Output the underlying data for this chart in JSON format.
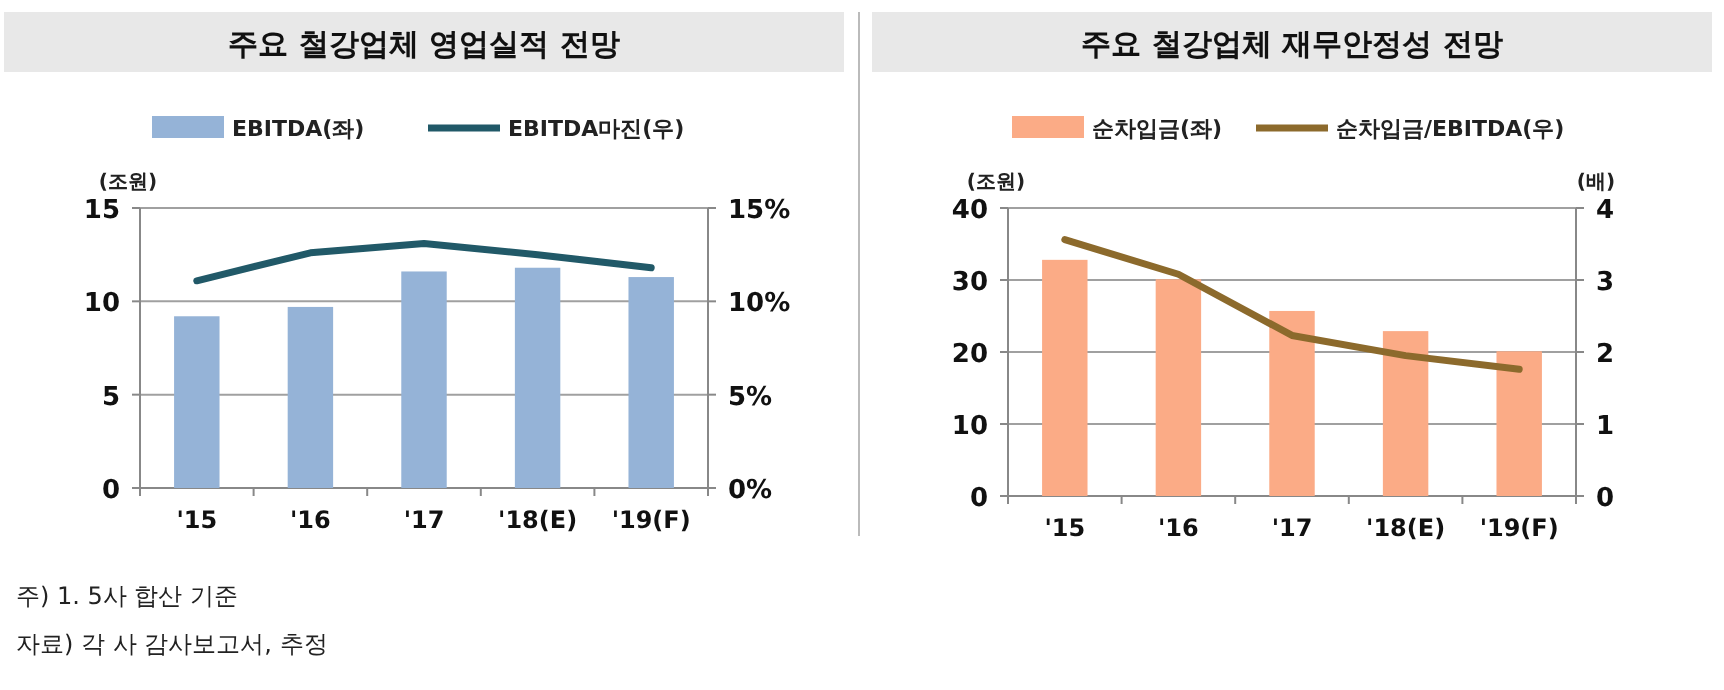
{
  "chart_data": [
    {
      "type": "bar",
      "title": "주요 철강업체 영업실적 전망",
      "ylabel": "(조원)",
      "categories": [
        "'15",
        "'16",
        "'17",
        "'18(E)",
        "'19(F)"
      ],
      "series": [
        {
          "name": "EBITDA(좌)",
          "color": "#95b3d7",
          "values": [
            9.2,
            9.7,
            11.6,
            11.8,
            11.3
          ]
        },
        {
          "name": "EBITDA마진(우)",
          "type": "line",
          "axis": "y2",
          "color": "#215968",
          "values": [
            11.1,
            12.6,
            13.1,
            12.5,
            11.8
          ]
        }
      ],
      "ylim": [
        0,
        15
      ],
      "yticks": [
        0,
        5,
        10,
        15
      ],
      "y2lim": [
        0,
        15
      ],
      "y2ticks": [
        {
          "value": 0,
          "label": "0%"
        },
        {
          "value": 5,
          "label": "5%"
        },
        {
          "value": 10,
          "label": "10%"
        },
        {
          "value": 15,
          "label": "15%"
        }
      ],
      "grid": "y",
      "legend": "top",
      "annotations": [
        "주) 1. 5사 합산 기준",
        "자료) 각 사 감사보고서, 추정"
      ]
    },
    {
      "type": "bar",
      "title": "주요 철강업체 재무안정성 전망",
      "ylabel": "(조원)",
      "y2label": "(배)",
      "categories": [
        "'15",
        "'16",
        "'17",
        "'18(E)",
        "'19(F)"
      ],
      "series": [
        {
          "name": "순차입금(좌)",
          "color": "#fbab86",
          "values": [
            32.8,
            30.1,
            25.7,
            22.9,
            20.1
          ]
        },
        {
          "name": "순차입금/EBITDA(우)",
          "type": "line",
          "axis": "y2",
          "color": "#8c6a2c",
          "values": [
            3.56,
            3.08,
            2.23,
            1.95,
            1.76
          ]
        }
      ],
      "ylim": [
        0,
        40
      ],
      "yticks": [
        0,
        10,
        20,
        30,
        40
      ],
      "y2lim": [
        0,
        4
      ],
      "y2ticks": [
        0,
        1,
        2,
        3,
        4
      ],
      "grid": "y",
      "legend": "top"
    }
  ]
}
